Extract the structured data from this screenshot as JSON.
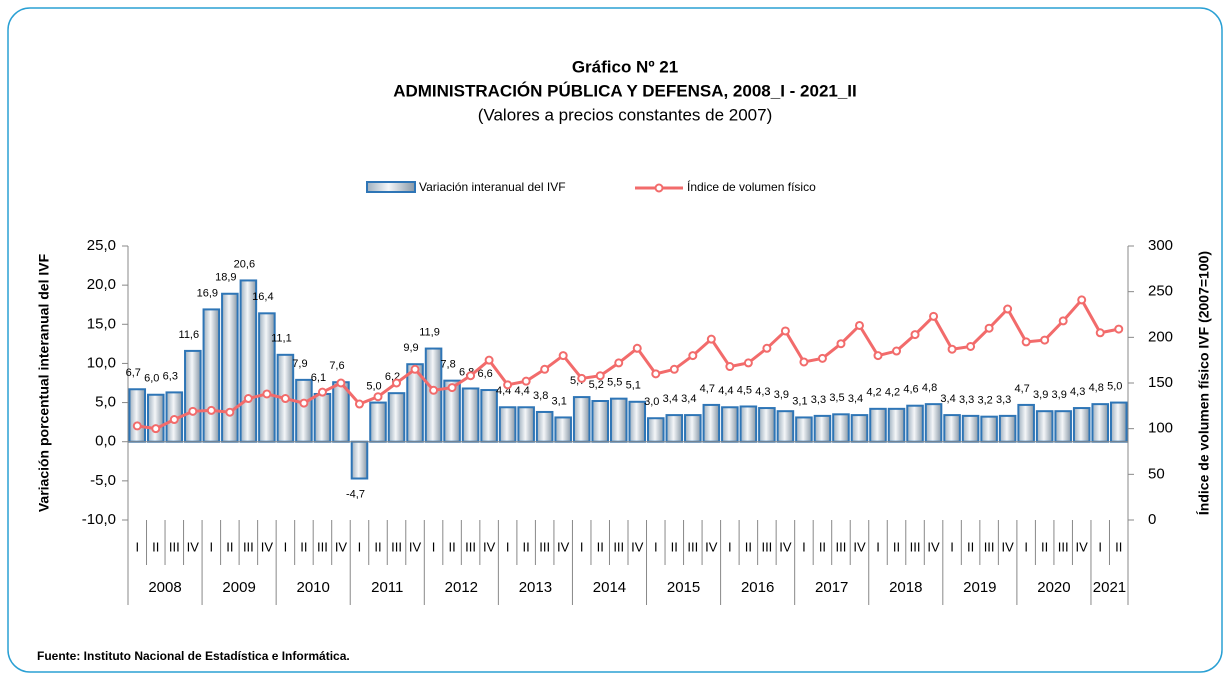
{
  "chart_data": {
    "type": "bar",
    "title": "Gráfico Nº 21",
    "subtitle": "ADMINISTRACIÓN PÚBLICA Y DEFENSA, 2008_I - 2021_II",
    "note": "(Valores a precios constantes de 2007)",
    "y_label": "Variación porcentual interanual del IVF",
    "y2_label": "Índice de volumen físico IVF (2007=100)",
    "source": "Fuente: Instituto Nacional de Estadística e Informática.",
    "categories": [
      "I",
      "II",
      "III",
      "IV",
      "I",
      "II",
      "III",
      "IV",
      "I",
      "II",
      "III",
      "IV",
      "I",
      "II",
      "III",
      "IV",
      "I",
      "II",
      "III",
      "IV",
      "I",
      "II",
      "III",
      "IV",
      "I",
      "II",
      "III",
      "IV",
      "I",
      "II",
      "III",
      "IV",
      "I",
      "II",
      "III",
      "IV",
      "I",
      "II",
      "III",
      "IV",
      "I",
      "II",
      "III",
      "IV",
      "I",
      "II",
      "III",
      "IV",
      "I",
      "II",
      "III",
      "IV",
      "I",
      "II"
    ],
    "groups": [
      "2008",
      "2009",
      "2010",
      "2011",
      "2012",
      "2013",
      "2014",
      "2015",
      "2016",
      "2017",
      "2018",
      "2019",
      "2020",
      "2021"
    ],
    "ylim": [
      -10,
      25
    ],
    "yticks": [
      {
        "value": -10,
        "label": "-10,0"
      },
      {
        "value": -5,
        "label": "-5,0"
      },
      {
        "value": 0,
        "label": "0,0"
      },
      {
        "value": 5,
        "label": "5,0"
      },
      {
        "value": 10,
        "label": "10,0"
      },
      {
        "value": 15,
        "label": "15,0"
      },
      {
        "value": 20,
        "label": "20,0"
      },
      {
        "value": 25,
        "label": "25,0"
      }
    ],
    "y2lim": [
      0,
      300
    ],
    "y2ticks": [
      0,
      50,
      100,
      150,
      200,
      250,
      300
    ],
    "series": [
      {
        "name": "Variación interanual del IVF",
        "color": "#2e75b6",
        "values": [
          6.7,
          6.0,
          6.3,
          11.6,
          16.9,
          18.9,
          20.6,
          16.4,
          11.1,
          7.9,
          6.1,
          7.6,
          -4.7,
          5.0,
          6.2,
          9.9,
          11.9,
          7.8,
          6.8,
          6.6,
          4.4,
          4.4,
          3.8,
          3.1,
          5.7,
          5.2,
          5.5,
          5.1,
          3.0,
          3.4,
          3.4,
          4.7,
          4.4,
          4.5,
          4.3,
          3.9,
          3.1,
          3.3,
          3.5,
          3.4,
          4.2,
          4.2,
          4.6,
          4.8,
          3.4,
          3.3,
          3.2,
          3.3,
          4.7,
          3.9,
          3.9,
          4.3,
          4.8,
          5.0
        ],
        "value_labels": [
          "6,7",
          "6,0",
          "6,3",
          "11,6",
          "16,9",
          "18,9",
          "20,6",
          "16,4",
          "11,1",
          "7,9",
          "6,1",
          "7,6",
          "-4,7",
          "5,0",
          "6,2",
          "9,9",
          "11,9",
          "7,8",
          "6,8",
          "6,6",
          "4,4",
          "4,4",
          "3,8",
          "3,1",
          "5,7",
          "5,2",
          "5,5",
          "5,1",
          "3,0",
          "3,4",
          "3,4",
          "4,7",
          "4,4",
          "4,5",
          "4,3",
          "3,9",
          "3,1",
          "3,3",
          "3,5",
          "3,4",
          "4,2",
          "4,2",
          "4,6",
          "4,8",
          "3,4",
          "3,3",
          "3,2",
          "3,3",
          "4,7",
          "3,9",
          "3,9",
          "4,3",
          "4,8",
          "5,0"
        ]
      },
      {
        "name": "Índice de volumen físico",
        "color": "#f26b6b",
        "type": "line",
        "axis": "y2",
        "values": [
          103,
          100,
          110,
          119,
          120,
          118,
          133,
          138,
          133,
          128,
          140,
          150,
          127,
          135,
          150,
          165,
          142,
          145,
          158,
          175,
          148,
          152,
          165,
          180,
          155,
          158,
          172,
          188,
          160,
          165,
          180,
          198,
          168,
          172,
          188,
          207,
          173,
          177,
          193,
          213,
          180,
          185,
          203,
          223,
          187,
          190,
          210,
          231,
          195,
          197,
          218,
          241,
          205,
          209
        ]
      }
    ]
  }
}
